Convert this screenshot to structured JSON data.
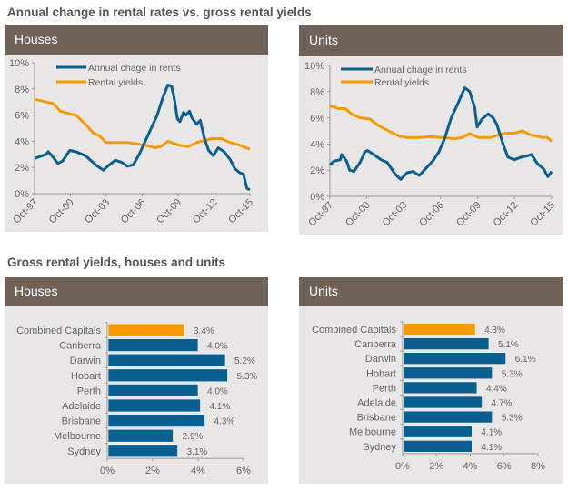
{
  "titles": {
    "line_section": "Annual change in rental rates vs. gross rental yields",
    "bar_section": "Gross rental yields, houses and units"
  },
  "colors": {
    "header": "#6e6259",
    "panel": "#e9e7e5",
    "blue": "#0a5f91",
    "orange": "#f59a00"
  },
  "chart_data": [
    {
      "type": "line",
      "title": "Houses",
      "ylim": [
        0,
        10
      ],
      "yticks": [
        "0%",
        "2%",
        "4%",
        "6%",
        "8%",
        "10%"
      ],
      "xticks": [
        "Oct-97",
        "Oct-00",
        "Oct-03",
        "Oct-06",
        "Oct-09",
        "Oct-12",
        "Oct-15"
      ],
      "xlim": [
        1997.75,
        2015.75
      ],
      "legend": "top-left",
      "series": [
        {
          "name": "Annual chage in rents",
          "color": "#0a5f91",
          "points": [
            [
              1997.8,
              2.7
            ],
            [
              1998.7,
              3.0
            ],
            [
              1998.9,
              3.2
            ],
            [
              1999.3,
              2.8
            ],
            [
              1999.7,
              2.3
            ],
            [
              2000.1,
              2.5
            ],
            [
              2000.7,
              3.3
            ],
            [
              2001.2,
              3.2
            ],
            [
              2002.0,
              2.9
            ],
            [
              2002.5,
              2.5
            ],
            [
              2003.0,
              2.1
            ],
            [
              2003.5,
              1.8
            ],
            [
              2004.0,
              2.2
            ],
            [
              2004.5,
              2.55
            ],
            [
              2005.0,
              2.4
            ],
            [
              2005.5,
              2.1
            ],
            [
              2006.0,
              2.2
            ],
            [
              2006.5,
              3.0
            ],
            [
              2007.0,
              4.0
            ],
            [
              2007.5,
              5.0
            ],
            [
              2008.0,
              6.0
            ],
            [
              2008.5,
              7.4
            ],
            [
              2008.9,
              8.3
            ],
            [
              2009.2,
              8.2
            ],
            [
              2009.4,
              7.4
            ],
            [
              2009.7,
              5.7
            ],
            [
              2009.9,
              5.5
            ],
            [
              2010.2,
              6.2
            ],
            [
              2010.4,
              6.0
            ],
            [
              2010.7,
              6.3
            ],
            [
              2010.9,
              5.8
            ],
            [
              2011.3,
              5.3
            ],
            [
              2011.6,
              5.6
            ],
            [
              2011.95,
              4.2
            ],
            [
              2012.3,
              3.3
            ],
            [
              2012.7,
              2.9
            ],
            [
              2013.1,
              3.5
            ],
            [
              2013.6,
              3.2
            ],
            [
              2014.1,
              2.6
            ],
            [
              2014.5,
              1.9
            ],
            [
              2014.9,
              1.6
            ],
            [
              2015.2,
              1.5
            ],
            [
              2015.5,
              0.4
            ],
            [
              2015.75,
              0.3
            ]
          ]
        },
        {
          "name": "Rental yields",
          "color": "#f59a00",
          "points": [
            [
              1997.8,
              7.2
            ],
            [
              1998.7,
              7.0
            ],
            [
              1999.3,
              6.9
            ],
            [
              1999.9,
              6.3
            ],
            [
              2000.7,
              6.1
            ],
            [
              2001.2,
              6.0
            ],
            [
              2002.0,
              5.3
            ],
            [
              2002.7,
              4.6
            ],
            [
              2003.2,
              4.4
            ],
            [
              2003.7,
              3.9
            ],
            [
              2004.5,
              3.9
            ],
            [
              2005.5,
              3.9
            ],
            [
              2006.3,
              3.8
            ],
            [
              2007.0,
              3.7
            ],
            [
              2007.8,
              3.5
            ],
            [
              2008.3,
              3.6
            ],
            [
              2008.9,
              4.0
            ],
            [
              2009.8,
              3.7
            ],
            [
              2010.6,
              3.6
            ],
            [
              2011.3,
              3.9
            ],
            [
              2012.1,
              4.1
            ],
            [
              2012.6,
              4.2
            ],
            [
              2013.35,
              4.2
            ],
            [
              2014.1,
              3.9
            ],
            [
              2014.9,
              3.7
            ],
            [
              2015.4,
              3.5
            ],
            [
              2015.75,
              3.4
            ]
          ]
        }
      ]
    },
    {
      "type": "line",
      "title": "Units",
      "ylim": [
        0,
        10
      ],
      "yticks": [
        "0%",
        "2%",
        "4%",
        "6%",
        "8%",
        "10%"
      ],
      "xticks": [
        "Oct-97",
        "Oct-00",
        "Oct-03",
        "Oct-06",
        "Oct-09",
        "Oct-12",
        "Oct-15"
      ],
      "xlim": [
        1997.75,
        2015.75
      ],
      "legend": "top-left",
      "series": [
        {
          "name": "Annual chage in rents",
          "color": "#0a5f91",
          "points": [
            [
              1997.75,
              2.4
            ],
            [
              1998.1,
              2.7
            ],
            [
              1998.6,
              2.8
            ],
            [
              1998.7,
              3.2
            ],
            [
              1999.1,
              2.7
            ],
            [
              1999.35,
              2.0
            ],
            [
              1999.7,
              1.9
            ],
            [
              2000.2,
              2.6
            ],
            [
              2000.6,
              3.4
            ],
            [
              2000.8,
              3.5
            ],
            [
              2001.3,
              3.2
            ],
            [
              2001.9,
              2.8
            ],
            [
              2002.4,
              2.6
            ],
            [
              2003.05,
              1.7
            ],
            [
              2003.5,
              1.3
            ],
            [
              2004.0,
              1.8
            ],
            [
              2004.5,
              1.9
            ],
            [
              2005.0,
              1.6
            ],
            [
              2005.5,
              2.1
            ],
            [
              2006.1,
              2.7
            ],
            [
              2006.6,
              3.4
            ],
            [
              2007.1,
              4.5
            ],
            [
              2007.6,
              6.0
            ],
            [
              2008.1,
              7.0
            ],
            [
              2008.7,
              8.3
            ],
            [
              2009.1,
              8.0
            ],
            [
              2009.5,
              6.8
            ],
            [
              2009.7,
              5.3
            ],
            [
              2010.1,
              5.9
            ],
            [
              2010.6,
              6.3
            ],
            [
              2011.0,
              6.0
            ],
            [
              2011.3,
              5.5
            ],
            [
              2011.8,
              4.0
            ],
            [
              2012.2,
              3.0
            ],
            [
              2012.7,
              2.8
            ],
            [
              2013.3,
              3.0
            ],
            [
              2013.8,
              3.1
            ],
            [
              2014.1,
              3.2
            ],
            [
              2014.6,
              2.5
            ],
            [
              2015.1,
              2.1
            ],
            [
              2015.45,
              1.5
            ],
            [
              2015.75,
              1.9
            ]
          ]
        },
        {
          "name": "Rental yields",
          "color": "#f59a00",
          "points": [
            [
              1997.75,
              6.9
            ],
            [
              1998.5,
              6.7
            ],
            [
              1999.0,
              6.7
            ],
            [
              1999.5,
              6.3
            ],
            [
              2000.2,
              6.0
            ],
            [
              2001.0,
              5.9
            ],
            [
              2001.7,
              5.4
            ],
            [
              2002.7,
              4.9
            ],
            [
              2003.4,
              4.6
            ],
            [
              2003.9,
              4.5
            ],
            [
              2004.9,
              4.5
            ],
            [
              2005.9,
              4.55
            ],
            [
              2006.9,
              4.5
            ],
            [
              2007.9,
              4.4
            ],
            [
              2008.5,
              4.5
            ],
            [
              2009.1,
              4.8
            ],
            [
              2009.8,
              4.5
            ],
            [
              2010.8,
              4.5
            ],
            [
              2011.8,
              4.8
            ],
            [
              2012.8,
              4.85
            ],
            [
              2013.4,
              5.0
            ],
            [
              2014.0,
              4.7
            ],
            [
              2015.0,
              4.5
            ],
            [
              2015.4,
              4.5
            ],
            [
              2015.75,
              4.2
            ]
          ]
        }
      ]
    },
    {
      "type": "bar",
      "orientation": "horizontal",
      "title": "Houses",
      "xlim": [
        0,
        6
      ],
      "xticks": [
        "0%",
        "2%",
        "4%",
        "6%"
      ],
      "categories": [
        "Combined Capitals",
        "Canberra",
        "Darwin",
        "Hobart",
        "Perth",
        "Adelaide",
        "Brisbane",
        "Melbourne",
        "Sydney"
      ],
      "values": [
        3.4,
        4.0,
        5.2,
        5.3,
        4.0,
        4.1,
        4.3,
        2.9,
        3.1
      ],
      "labels": [
        "3.4%",
        "4.0%",
        "5.2%",
        "5.3%",
        "4.0%",
        "4.1%",
        "4.3%",
        "2.9%",
        "3.1%"
      ],
      "highlight_index": 0
    },
    {
      "type": "bar",
      "orientation": "horizontal",
      "title": "Units",
      "xlim": [
        0,
        8
      ],
      "xticks": [
        "0%",
        "2%",
        "4%",
        "6%",
        "8%"
      ],
      "categories": [
        "Combined Capitals",
        "Canberra",
        "Darwin",
        "Hobart",
        "Perth",
        "Adelaide",
        "Brisbane",
        "Melbourne",
        "Sydney"
      ],
      "values": [
        4.3,
        5.1,
        6.1,
        5.3,
        4.4,
        4.7,
        5.3,
        4.1,
        4.1
      ],
      "labels": [
        "4.3%",
        "5.1%",
        "6.1%",
        "5.3%",
        "4.4%",
        "4.7%",
        "5.3%",
        "4.1%",
        "4.1%"
      ],
      "highlight_index": 0
    }
  ]
}
